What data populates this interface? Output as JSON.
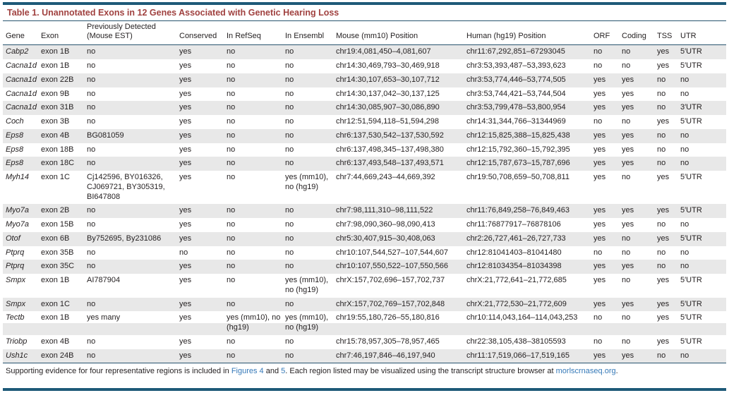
{
  "title": "Table 1.  Unannotated Exons in 12 Genes Associated with Genetic Hearing Loss",
  "colors": {
    "rule_teal": "#1e5a78",
    "rule_dark": "#27536e",
    "title_red": "#a0413f",
    "row_shade_gray": "#e8e8e8",
    "link_blue": "#3579b8",
    "text": "#231f20"
  },
  "table": {
    "columns": [
      {
        "key": "gene",
        "label": "Gene"
      },
      {
        "key": "exon",
        "label": "Exon"
      },
      {
        "key": "prev",
        "label": "Previously Detected (Mouse EST)"
      },
      {
        "key": "cons",
        "label": "Conserved"
      },
      {
        "key": "refseq",
        "label": "In RefSeq"
      },
      {
        "key": "ens",
        "label": "In Ensembl"
      },
      {
        "key": "mouse",
        "label": "Mouse (mm10) Position"
      },
      {
        "key": "human",
        "label": "Human (hg19) Position"
      },
      {
        "key": "orf",
        "label": "ORF"
      },
      {
        "key": "coding",
        "label": "Coding"
      },
      {
        "key": "tss",
        "label": "TSS"
      },
      {
        "key": "utr",
        "label": "UTR"
      }
    ],
    "rows": [
      {
        "gene": "Cabp2",
        "exon": "exon 1B",
        "prev": "no",
        "cons": "yes",
        "refseq": "no",
        "ens": "no",
        "mouse": "chr19:4,081,450–4,081,607",
        "human": "chr11:67,292,851–67293045",
        "orf": "no",
        "coding": "no",
        "tss": "yes",
        "utr": "5′UTR",
        "shade": "full"
      },
      {
        "gene": "Cacna1d",
        "exon": "exon 1B",
        "prev": "no",
        "cons": "yes",
        "refseq": "no",
        "ens": "no",
        "mouse": "chr14:30,469,793–30,469,918",
        "human": "chr3:53,393,487–53,393,623",
        "orf": "no",
        "coding": "no",
        "tss": "yes",
        "utr": "5′UTR",
        "shade": "none"
      },
      {
        "gene": "Cacna1d",
        "exon": "exon 22B",
        "prev": "no",
        "cons": "yes",
        "refseq": "no",
        "ens": "no",
        "mouse": "chr14:30,107,653–30,107,712",
        "human": "chr3:53,774,446–53,774,505",
        "orf": "yes",
        "coding": "yes",
        "tss": "no",
        "utr": "no",
        "shade": "full"
      },
      {
        "gene": "Cacna1d",
        "exon": "exon 9B",
        "prev": "no",
        "cons": "yes",
        "refseq": "no",
        "ens": "no",
        "mouse": "chr14:30,137,042–30,137,125",
        "human": "chr3:53,744,421–53,744,504",
        "orf": "yes",
        "coding": "yes",
        "tss": "no",
        "utr": "no",
        "shade": "none"
      },
      {
        "gene": "Cacna1d",
        "exon": "exon 31B",
        "prev": "no",
        "cons": "yes",
        "refseq": "no",
        "ens": "no",
        "mouse": "chr14:30,085,907–30,086,890",
        "human": "chr3:53,799,478–53,800,954",
        "orf": "yes",
        "coding": "yes",
        "tss": "no",
        "utr": "3′UTR",
        "shade": "full"
      },
      {
        "gene": "Coch",
        "exon": "exon 3B",
        "prev": "no",
        "cons": "yes",
        "refseq": "no",
        "ens": "no",
        "mouse": "chr12:51,594,118–51,594,298",
        "human": "chr14:31,344,766–31344969",
        "orf": "no",
        "coding": "no",
        "tss": "yes",
        "utr": "5′UTR",
        "shade": "none"
      },
      {
        "gene": "Eps8",
        "exon": "exon 4B",
        "prev": "BG081059",
        "cons": "yes",
        "refseq": "no",
        "ens": "no",
        "mouse": "chr6:137,530,542–137,530,592",
        "human": "chr12:15,825,388–15,825,438",
        "orf": "yes",
        "coding": "yes",
        "tss": "no",
        "utr": "no",
        "shade": "full"
      },
      {
        "gene": "Eps8",
        "exon": "exon 18B",
        "prev": "no",
        "cons": "yes",
        "refseq": "no",
        "ens": "no",
        "mouse": "chr6:137,498,345–137,498,380",
        "human": "chr12:15,792,360–15,792,395",
        "orf": "yes",
        "coding": "yes",
        "tss": "no",
        "utr": "no",
        "shade": "none"
      },
      {
        "gene": "Eps8",
        "exon": "exon 18C",
        "prev": "no",
        "cons": "yes",
        "refseq": "no",
        "ens": "no",
        "mouse": "chr6:137,493,548–137,493,571",
        "human": "chr12:15,787,673–15,787,696",
        "orf": "yes",
        "coding": "yes",
        "tss": "no",
        "utr": "no",
        "shade": "full"
      },
      {
        "gene": "Myh14",
        "exon": "exon 1C",
        "prev": "Cj142596, BY016326, CJ069721, BY305319, BI647808",
        "cons": "yes",
        "refseq": "no",
        "ens": "yes (mm10), no (hg19)",
        "mouse": "chr7:44,669,243–44,669,392",
        "human": "chr19:50,708,659–50,708,811",
        "orf": "yes",
        "coding": "no",
        "tss": "yes",
        "utr": "5′UTR",
        "shade": "none"
      },
      {
        "gene": "Myo7a",
        "exon": "exon 2B",
        "prev": "no",
        "cons": "yes",
        "refseq": "no",
        "ens": "no",
        "mouse": "chr7:98,111,310–98,111,522",
        "human": "chr11:76,849,258–76,849,463",
        "orf": "yes",
        "coding": "yes",
        "tss": "yes",
        "utr": "5′UTR",
        "shade": "full"
      },
      {
        "gene": "Myo7a",
        "exon": "exon 15B",
        "prev": "no",
        "cons": "yes",
        "refseq": "no",
        "ens": "no",
        "mouse": "chr7:98,090,360–98,090,413",
        "human": "chr11:76877917–76878106",
        "orf": "yes",
        "coding": "yes",
        "tss": "no",
        "utr": "no",
        "shade": "none"
      },
      {
        "gene": "Otof",
        "exon": "exon 6B",
        "prev": "By752695, By231086",
        "cons": "yes",
        "refseq": "no",
        "ens": "no",
        "mouse": "chr5:30,407,915–30,408,063",
        "human": "chr2:26,727,461–26,727,733",
        "orf": "yes",
        "coding": "no",
        "tss": "yes",
        "utr": "5′UTR",
        "shade": "full"
      },
      {
        "gene": "Ptprq",
        "exon": "exon 35B",
        "prev": "no",
        "cons": "no",
        "refseq": "no",
        "ens": "no",
        "mouse": "chr10:107,544,527–107,544,607",
        "human": "chr12:81041403–81041480",
        "orf": "no",
        "coding": "no",
        "tss": "no",
        "utr": "no",
        "shade": "none"
      },
      {
        "gene": "Ptprq",
        "exon": "exon 35C",
        "prev": "no",
        "cons": "yes",
        "refseq": "no",
        "ens": "no",
        "mouse": "chr10:107,550,522–107,550,566",
        "human": "chr12:81034354–81034398",
        "orf": "yes",
        "coding": "yes",
        "tss": "no",
        "utr": "no",
        "shade": "full"
      },
      {
        "gene": "Smpx",
        "exon": "exon 1B",
        "prev": "AI787904",
        "cons": "yes",
        "refseq": "no",
        "ens": "yes (mm10), no (hg19)",
        "mouse": "chrX:157,702,696–157,702,737",
        "human": "chrX:21,772,641–21,772,685",
        "orf": "yes",
        "coding": "no",
        "tss": "yes",
        "utr": "5′UTR",
        "shade": "none"
      },
      {
        "gene": "Smpx",
        "exon": "exon 1C",
        "prev": "no",
        "cons": "yes",
        "refseq": "no",
        "ens": "no",
        "mouse": "chrX:157,702,769–157,702,848",
        "human": "chrX:21,772,530–21,772,609",
        "orf": "yes",
        "coding": "yes",
        "tss": "yes",
        "utr": "5′UTR",
        "shade": "full"
      },
      {
        "gene": "Tectb",
        "exon": "exon 1B",
        "prev": "yes many",
        "cons": "yes",
        "refseq": "yes (mm10), no (hg19)",
        "ens": "yes (mm10), no (hg19)",
        "mouse": "chr19:55,180,726–55,180,816",
        "human": "chr10:114,043,164–114,043,253",
        "orf": "no",
        "coding": "no",
        "tss": "yes",
        "utr": "5′UTR",
        "shade": "bottom-half"
      },
      {
        "gene": "Triobp",
        "exon": "exon 4B",
        "prev": "no",
        "cons": "yes",
        "refseq": "no",
        "ens": "no",
        "mouse": "chr15:78,957,305–78,957,465",
        "human": "chr22:38,105,438–38105593",
        "orf": "no",
        "coding": "no",
        "tss": "yes",
        "utr": "5′UTR",
        "shade": "none"
      },
      {
        "gene": "Ush1c",
        "exon": "exon 24B",
        "prev": "no",
        "cons": "yes",
        "refseq": "no",
        "ens": "no",
        "mouse": "chr7:46,197,846–46,197,940",
        "human": "chr11:17,519,066–17,519,165",
        "orf": "yes",
        "coding": "yes",
        "tss": "no",
        "utr": "no",
        "shade": "full"
      }
    ]
  },
  "footer": {
    "text_before": "Supporting evidence for four representative regions is included in ",
    "link_figures4": "Figures 4",
    "text_and": " and ",
    "link_5": "5",
    "text_middle": ". Each region listed may be visualized using the transcript structure browser at ",
    "link_site": "morlscrnaseq.org",
    "text_end": "."
  }
}
